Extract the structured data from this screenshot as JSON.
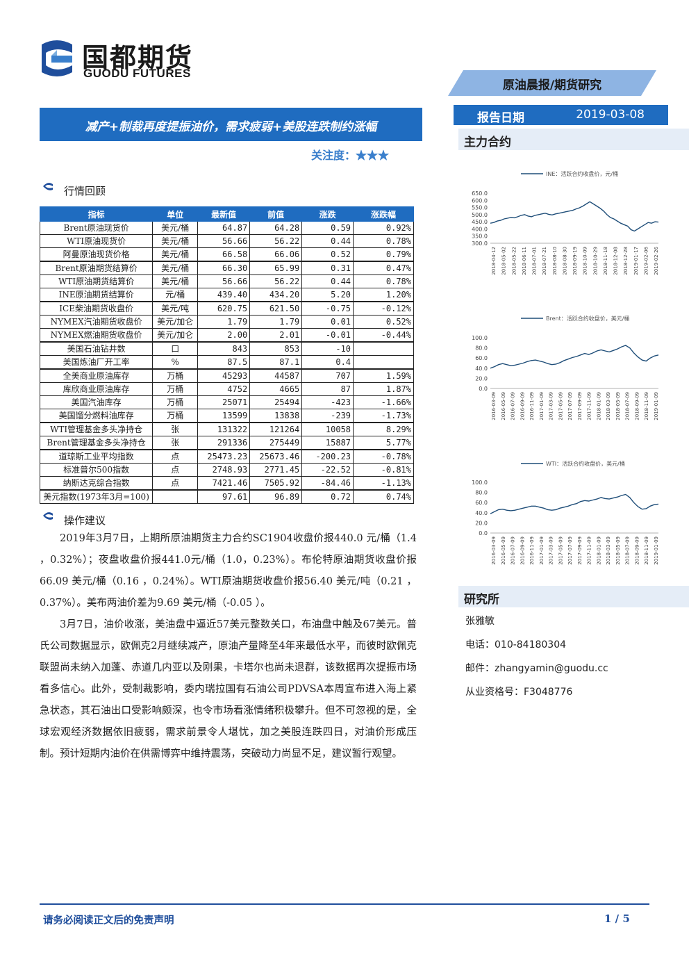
{
  "header": {
    "company_cn": "国都期货",
    "company_en": "GUODU FUTURES",
    "report_type": "原油晨报/期货研究",
    "date_label": "报告日期",
    "date_value": "2019-03-08"
  },
  "title": "减产+制裁再度提振油价，需求疲弱+美股连跌制约涨幅",
  "focus": {
    "label": "关注度：",
    "stars": "★★★"
  },
  "sections": {
    "market_review": "行情回顾",
    "advice": "操作建议",
    "main_contract": "主力合约",
    "institute": "研究所"
  },
  "table": {
    "headers": [
      "指标",
      "单位",
      "最新值",
      "前值",
      "涨跌",
      "涨跌幅"
    ],
    "rows": [
      [
        "Brent原油现货价",
        "美元/桶",
        "64.87",
        "64.28",
        "0.59",
        "0.92%"
      ],
      [
        "WTI原油现货价",
        "美元/桶",
        "56.66",
        "56.22",
        "0.44",
        "0.78%"
      ],
      [
        "阿曼原油现货价格",
        "美元/桶",
        "66.58",
        "66.06",
        "0.52",
        "0.79%"
      ],
      [
        "Brent原油期货结算价",
        "美元/桶",
        "66.30",
        "65.99",
        "0.31",
        "0.47%"
      ],
      [
        "WTI原油期货结算价",
        "美元/桶",
        "56.66",
        "56.22",
        "0.44",
        "0.78%"
      ],
      [
        "INE原油期货结算价",
        "元/桶",
        "439.40",
        "434.20",
        "5.20",
        "1.20%"
      ],
      [
        "ICE柴油期货收盘价",
        "美元/吨",
        "620.75",
        "621.50",
        "-0.75",
        "-0.12%"
      ],
      [
        "NYMEX汽油期货收盘价",
        "美元/加仑",
        "1.79",
        "1.79",
        "0.01",
        "0.52%"
      ],
      [
        "NYMEX燃油期货收盘价",
        "美元/加仑",
        "2.00",
        "2.01",
        "-0.01",
        "-0.44%"
      ],
      [
        "美国石油钻井数",
        "口",
        "843",
        "853",
        "-10",
        ""
      ],
      [
        "美国炼油厂开工率",
        "%",
        "87.5",
        "87.1",
        "0.4",
        ""
      ],
      [
        "全美商业原油库存",
        "万桶",
        "45293",
        "44587",
        "707",
        "1.59%"
      ],
      [
        "库欣商业原油库存",
        "万桶",
        "4752",
        "4665",
        "87",
        "1.87%"
      ],
      [
        "美国汽油库存",
        "万桶",
        "25071",
        "25494",
        "-423",
        "-1.66%"
      ],
      [
        "美国馏分燃料油库存",
        "万桶",
        "13599",
        "13838",
        "-239",
        "-1.73%"
      ],
      [
        "WTI管理基金多头净持仓",
        "张",
        "131322",
        "121264",
        "10058",
        "8.29%"
      ],
      [
        "Brent管理基金多头净持仓",
        "张",
        "291336",
        "275449",
        "15887",
        "5.77%"
      ],
      [
        "道琼斯工业平均指数",
        "点",
        "25473.23",
        "25673.46",
        "-200.23",
        "-0.78%"
      ],
      [
        "标准普尔500指数",
        "点",
        "2748.93",
        "2771.45",
        "-22.52",
        "-0.81%"
      ],
      [
        "纳斯达克综合指数",
        "点",
        "7421.46",
        "7505.92",
        "-84.46",
        "-1.13%"
      ],
      [
        "美元指数(1973年3月=100)",
        "",
        "97.61",
        "96.89",
        "0.72",
        "0.74%"
      ]
    ]
  },
  "advice_paragraphs": [
    "2019年3月7日，上期所原油期货主力合约SC1904收盘价报440.0 元/桶（1.4 ，0.32%）；夜盘收盘价报441.0元/桶（1.0，0.23%）。布伦特原油期货收盘价报66.09 美元/桶（0.16 ，0.24%）。WTI原油期货收盘价报56.40 美元/吨（0.21 ，0.37%）。美布两油价差为9.69 美元/桶（-0.05 ）。",
    "3月7日，油价收涨，美油盘中逼近57美元整数关口，布油盘中触及67美元。普氏公司数据显示，欧佩克2月继续减产，原油产量降至4年来最低水平，而彼时欧佩克联盟尚未纳入加蓬、赤道几内亚以及刚果，卡塔尔也尚未退群，该数据再次提振市场看多信心。此外，受制裁影响，委内瑞拉国有石油公司PDVSA本周宣布进入海上紧急状态，其石油出口受影响颇深，也令市场看涨情绪积极攀升。但不可忽视的是，全球宏观经济数据依旧疲弱，需求前景令人堪忧，加之美股连跌四日，对油价形成压制。预计短期内油价在供需博弈中维持震荡，突破动力尚显不足，建议暂行观望。"
  ],
  "contact": {
    "name": "张雅敏",
    "phone": "电话：010-84180304",
    "email": "邮件：zhangyamin@guodu.cc",
    "license": "从业资格号：F3048776"
  },
  "footer": {
    "disclaimer": "请务必阅读正文后的免责声明",
    "page": "1 / 5"
  },
  "chart_data": [
    {
      "type": "line",
      "legend": "INE：活跃合约收盘价，元/桶",
      "line_color": "#1f4e79",
      "ylim": [
        300,
        650
      ],
      "yticks": [
        "650.0",
        "600.0",
        "550.0",
        "500.0",
        "450.0",
        "400.0",
        "350.0",
        "300.0"
      ],
      "xticks": [
        "2018-04-12",
        "2018-05-02",
        "2018-05-22",
        "2018-06-11",
        "2018-07-01",
        "2018-07-21",
        "2018-08-10",
        "2018-08-30",
        "2018-09-19",
        "2018-10-09",
        "2018-10-29",
        "2018-11-18",
        "2018-12-08",
        "2018-12-28",
        "2019-01-17",
        "2019-02-06",
        "2019-02-26"
      ],
      "values": [
        440,
        445,
        455,
        460,
        470,
        475,
        480,
        478,
        485,
        495,
        500,
        490,
        485,
        495,
        500,
        505,
        510,
        502,
        498,
        505,
        510,
        515,
        520,
        525,
        530,
        540,
        548,
        560,
        575,
        590,
        575,
        560,
        545,
        525,
        500,
        480,
        470,
        455,
        440,
        430,
        420,
        395,
        385,
        400,
        415,
        430,
        445,
        440,
        450,
        448
      ]
    },
    {
      "type": "line",
      "legend": "Brent：活跃合约收盘价，美元/桶",
      "line_color": "#1f4e79",
      "ylim": [
        0,
        100
      ],
      "yticks": [
        "100.0",
        "80.0",
        "60.0",
        "40.0",
        "20.0",
        "0.0"
      ],
      "xticks": [
        "2016-03-09",
        "2016-05-09",
        "2016-07-09",
        "2016-09-09",
        "2016-11-09",
        "2017-01-09",
        "2017-03-09",
        "2017-05-09",
        "2017-07-09",
        "2017-09-09",
        "2017-11-09",
        "2018-01-09",
        "2018-03-09",
        "2018-05-09",
        "2018-07-09",
        "2018-09-09",
        "2018-11-09",
        "2019-01-09"
      ],
      "values": [
        40,
        43,
        47,
        49,
        47,
        45,
        46,
        48,
        50,
        53,
        55,
        56,
        54,
        52,
        49,
        47,
        48,
        51,
        55,
        58,
        61,
        63,
        66,
        69,
        67,
        70,
        74,
        76,
        74,
        72,
        75,
        78,
        82,
        85,
        80,
        70,
        62,
        56,
        54,
        60,
        64,
        66
      ]
    },
    {
      "type": "line",
      "legend": "WTI：活跃合约收盘价，美元/桶",
      "line_color": "#1f4e79",
      "ylim": [
        0,
        100
      ],
      "yticks": [
        "100.0",
        "80.0",
        "60.0",
        "40.0",
        "20.0",
        "0.0"
      ],
      "xticks": [
        "2016-03-09",
        "2016-05-09",
        "2016-07-09",
        "2016-09-09",
        "2016-11-09",
        "2017-01-09",
        "2017-03-09",
        "2017-05-09",
        "2017-07-09",
        "2017-09-09",
        "2017-11-09",
        "2018-01-09",
        "2018-03-09",
        "2018-05-09",
        "2018-07-09",
        "2018-09-09",
        "2018-11-09",
        "2019-01-09"
      ],
      "values": [
        38,
        42,
        46,
        47,
        45,
        44,
        45,
        47,
        49,
        51,
        53,
        53,
        51,
        49,
        46,
        45,
        46,
        49,
        51,
        53,
        56,
        58,
        62,
        64,
        63,
        65,
        67,
        70,
        68,
        67,
        69,
        71,
        74,
        76,
        70,
        60,
        52,
        47,
        48,
        53,
        56,
        57
      ]
    }
  ]
}
